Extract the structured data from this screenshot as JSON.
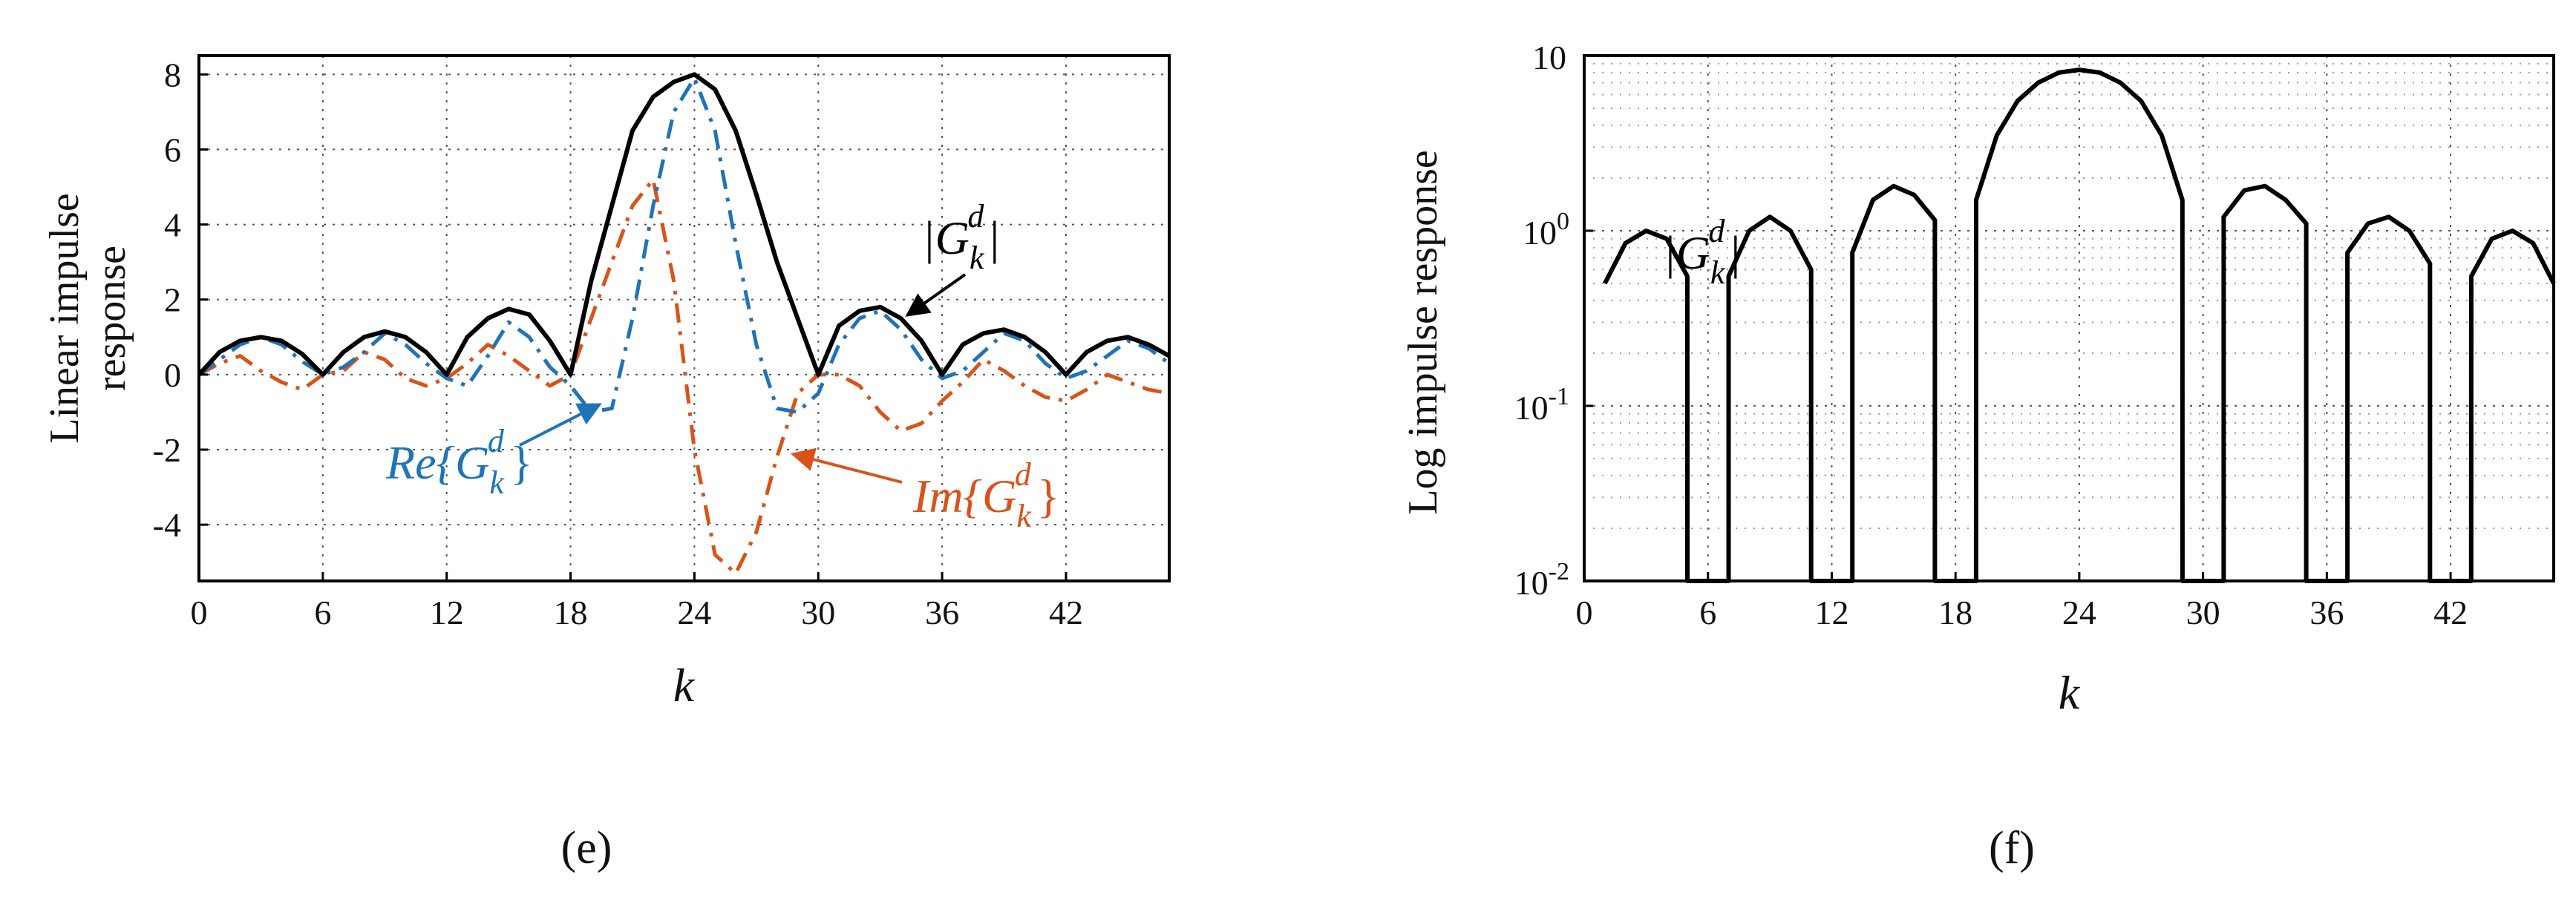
{
  "chart_data": [
    {
      "type": "line",
      "panel_label": "(e)",
      "xlabel": "k",
      "ylabel_line1": "Linear impulse",
      "ylabel_line2": "response",
      "xlim": [
        0,
        47
      ],
      "ylim": [
        -5.5,
        8.5
      ],
      "xticks": [
        0,
        6,
        12,
        18,
        24,
        30,
        36,
        42
      ],
      "xtick_labels": [
        "0",
        "6",
        "12",
        "18",
        "24",
        "30",
        "36",
        "42"
      ],
      "yticks": [
        8,
        6,
        4,
        2,
        0,
        -2,
        -4
      ],
      "ytick_labels": [
        "8",
        "6",
        "4",
        "2",
        "0",
        "-2",
        "-4"
      ],
      "grid": true,
      "series": [
        {
          "name": "|G_k^d|",
          "label": "|G",
          "color": "#000000",
          "style": "solid",
          "x": [
            0,
            1,
            2,
            3,
            4,
            5,
            6,
            7,
            8,
            9,
            10,
            11,
            12,
            13,
            14,
            15,
            16,
            17,
            18,
            19,
            20,
            21,
            22,
            23,
            24,
            25,
            26,
            27,
            28,
            29,
            30,
            31,
            32,
            33,
            34,
            35,
            36,
            37,
            38,
            39,
            40,
            41,
            42,
            43,
            44,
            45,
            46,
            47
          ],
          "values": [
            0,
            0.6,
            0.9,
            1.0,
            0.9,
            0.55,
            0,
            0.6,
            1.0,
            1.15,
            1.0,
            0.6,
            0,
            1.0,
            1.5,
            1.75,
            1.6,
            0.9,
            0,
            2.5,
            4.5,
            6.5,
            7.4,
            7.8,
            8.0,
            7.6,
            6.5,
            4.8,
            3.0,
            1.5,
            0,
            1.3,
            1.7,
            1.8,
            1.5,
            0.9,
            0,
            0.8,
            1.1,
            1.2,
            1.0,
            0.6,
            0,
            0.6,
            0.9,
            1.0,
            0.8,
            0.5
          ]
        },
        {
          "name": "Re{G_k^d}",
          "label": "Re{G",
          "color": "#1f74b7",
          "style": "dash-dot",
          "x": [
            0,
            1,
            2,
            3,
            4,
            5,
            6,
            7,
            8,
            9,
            10,
            11,
            12,
            13,
            14,
            15,
            16,
            17,
            18,
            19,
            20,
            21,
            22,
            23,
            24,
            25,
            26,
            27,
            28,
            29,
            30,
            31,
            32,
            33,
            34,
            35,
            36,
            37,
            38,
            39,
            40,
            41,
            42,
            43,
            44,
            45,
            46,
            47
          ],
          "values": [
            0,
            0.4,
            0.8,
            1.0,
            0.8,
            0.35,
            0,
            0.2,
            0.6,
            1.1,
            0.8,
            0.3,
            -0.1,
            -0.3,
            0.5,
            1.4,
            1.0,
            0.2,
            -0.3,
            -1.0,
            -0.9,
            1.5,
            4.5,
            7.0,
            7.9,
            6.5,
            3.5,
            0.8,
            -0.9,
            -1.0,
            -0.5,
            0.8,
            1.5,
            1.7,
            1.2,
            0.4,
            -0.1,
            0.1,
            0.6,
            1.1,
            0.9,
            0.3,
            -0.1,
            0.1,
            0.5,
            0.9,
            0.7,
            0.3
          ]
        },
        {
          "name": "Im{G_k^d}",
          "label": "Im{G",
          "color": "#d95319",
          "style": "dash-dot",
          "x": [
            0,
            1,
            2,
            3,
            4,
            5,
            6,
            7,
            8,
            9,
            10,
            11,
            12,
            13,
            14,
            15,
            16,
            17,
            18,
            19,
            20,
            21,
            22,
            23,
            24,
            25,
            26,
            27,
            28,
            29,
            30,
            31,
            32,
            33,
            34,
            35,
            36,
            37,
            38,
            39,
            40,
            41,
            42,
            43,
            44,
            45,
            46,
            47
          ],
          "values": [
            0,
            0.3,
            0.5,
            0.1,
            -0.2,
            -0.4,
            0,
            0.1,
            0.6,
            0.4,
            -0.1,
            -0.3,
            -0.1,
            0.3,
            0.8,
            0.5,
            0.1,
            -0.3,
            0,
            1.5,
            3.0,
            4.5,
            5.2,
            2.5,
            -2.0,
            -4.8,
            -5.3,
            -4.2,
            -2.2,
            -0.5,
            0,
            0,
            -0.3,
            -1.0,
            -1.5,
            -1.3,
            -0.7,
            -0.2,
            0.4,
            0.1,
            -0.3,
            -0.6,
            -0.7,
            -0.4,
            0,
            -0.2,
            -0.4,
            -0.5
          ]
        }
      ],
      "annotations": {
        "mag_label": "|G",
        "re_label": "Re{G",
        "im_label": "Im{G",
        "sub": "k",
        "sup": "d",
        "close_brace": "}",
        "close_bar": "|"
      }
    },
    {
      "type": "line",
      "panel_label": "(f)",
      "xlabel": "k",
      "ylabel": "Log impulse response",
      "yscale": "log",
      "xlim": [
        0,
        47
      ],
      "ylim": [
        0.01,
        10
      ],
      "xticks": [
        0,
        6,
        12,
        18,
        24,
        30,
        36,
        42
      ],
      "xtick_labels": [
        "0",
        "6",
        "12",
        "18",
        "24",
        "30",
        "36",
        "42"
      ],
      "ytick_labels": [
        "10",
        "10",
        "10",
        "10"
      ],
      "ytick_exponents": [
        "",
        "0",
        "-1",
        "-2"
      ],
      "grid": true,
      "series": [
        {
          "name": "|G_k^d|",
          "label": "|G",
          "color": "#000000",
          "style": "solid",
          "x": [
            1,
            2,
            3,
            4,
            5,
            5.001,
            6.999,
            7,
            8,
            9,
            10,
            11,
            11.001,
            12.999,
            13,
            14,
            15,
            16,
            17,
            17.001,
            18.999,
            19,
            20,
            21,
            22,
            23,
            24,
            25,
            26,
            27,
            28,
            29,
            29.001,
            30.999,
            31,
            32,
            33,
            34,
            35,
            35.001,
            36.999,
            37,
            38,
            39,
            40,
            41,
            41.001,
            42.999,
            43,
            44,
            45,
            46,
            47
          ],
          "values": [
            0.5,
            0.85,
            1.0,
            0.9,
            0.55,
            0.0001,
            0.0001,
            0.55,
            1.0,
            1.2,
            1.0,
            0.6,
            0.0001,
            0.0001,
            0.75,
            1.5,
            1.8,
            1.6,
            1.15,
            0.0001,
            0.0001,
            1.5,
            3.5,
            5.5,
            7.0,
            8.0,
            8.3,
            8.0,
            7.0,
            5.5,
            3.5,
            1.5,
            0.0001,
            0.0001,
            1.2,
            1.7,
            1.8,
            1.5,
            1.1,
            0.0001,
            0.0001,
            0.75,
            1.1,
            1.2,
            1.0,
            0.65,
            0.0001,
            0.0001,
            0.55,
            0.9,
            1.0,
            0.85,
            0.5
          ]
        }
      ],
      "annotations": {
        "mag_label": "|G",
        "sub": "k",
        "sup": "d",
        "close_bar": "|"
      }
    }
  ]
}
